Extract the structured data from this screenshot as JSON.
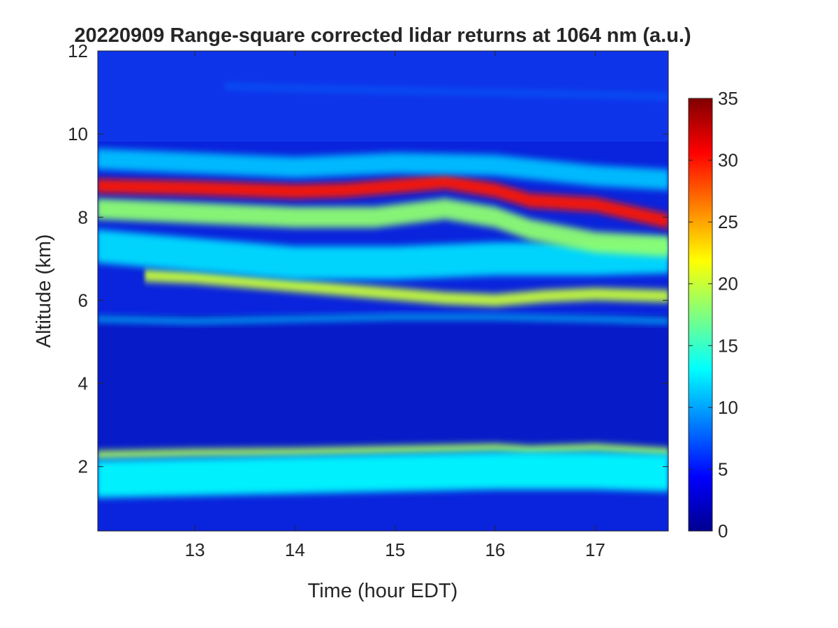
{
  "chart_data": {
    "type": "heatmap",
    "title": "20220909  Range-square corrected lidar returns at 1064 nm (a.u.)",
    "xlabel": "Time (hour EDT)",
    "ylabel": "Altitude (km)",
    "xlim": [
      12.03,
      17.73
    ],
    "ylim": [
      0.45,
      12
    ],
    "xticks": [
      13,
      14,
      15,
      16,
      17
    ],
    "yticks": [
      2,
      4,
      6,
      8,
      10,
      12
    ],
    "colorbar": {
      "range": [
        0,
        35
      ],
      "ticks": [
        0,
        5,
        10,
        15,
        20,
        25,
        30,
        35
      ],
      "colormap": "jet"
    },
    "colormap_stops": [
      "#00008f",
      "#0000ff",
      "#00ffff",
      "#ffff00",
      "#ff0000",
      "#800000"
    ],
    "layers": [
      {
        "name": "boundary-layer-top",
        "value": 19,
        "t": [
          12.03,
          13.0,
          14.0,
          15.0,
          16.0,
          16.35,
          17.0,
          17.73
        ],
        "altitude": [
          2.28,
          2.33,
          2.35,
          2.4,
          2.45,
          2.4,
          2.45,
          2.35
        ],
        "thickness_km": 0.2
      },
      {
        "name": "boundary-layer-body",
        "value": 13,
        "t": [
          12.03,
          13.0,
          14.0,
          15.0,
          16.0,
          17.0,
          17.73
        ],
        "altitude": [
          1.7,
          1.75,
          1.8,
          1.85,
          1.9,
          1.9,
          1.85
        ],
        "thickness_km": 0.9
      },
      {
        "name": "cloud-5.5km",
        "value": 11,
        "t": [
          12.03,
          13.0,
          14.0,
          15.0,
          16.0,
          17.0,
          17.73
        ],
        "altitude": [
          5.55,
          5.5,
          5.55,
          5.6,
          5.6,
          5.55,
          5.5
        ],
        "thickness_km": 0.12
      },
      {
        "name": "cloud-6.4km",
        "value": 20,
        "t": [
          12.5,
          13.0,
          13.5,
          14.0,
          14.5,
          15.0,
          15.5,
          16.0,
          16.5,
          17.0,
          17.73
        ],
        "altitude": [
          6.6,
          6.55,
          6.45,
          6.35,
          6.25,
          6.15,
          6.05,
          6.0,
          6.1,
          6.15,
          6.1
        ],
        "thickness_km": 0.3
      },
      {
        "name": "cloud-7.3km",
        "value": 12,
        "t": [
          12.03,
          13.0,
          14.0,
          15.0,
          16.0,
          17.0,
          17.73
        ],
        "altitude": [
          7.3,
          7.1,
          6.9,
          6.9,
          7.0,
          7.0,
          7.05
        ],
        "thickness_km": 0.8
      },
      {
        "name": "cirrus-lower",
        "value": 18,
        "t": [
          12.03,
          13.0,
          14.0,
          14.8,
          15.5,
          16.0,
          16.35,
          17.0,
          17.73
        ],
        "altitude": [
          8.2,
          8.1,
          8.0,
          8.0,
          8.2,
          8.0,
          7.7,
          7.4,
          7.3
        ],
        "thickness_km": 0.5
      },
      {
        "name": "cirrus-core",
        "value": 30,
        "t": [
          12.03,
          13.0,
          14.0,
          14.5,
          15.0,
          15.5,
          16.0,
          16.35,
          17.0,
          17.73
        ],
        "altitude": [
          8.75,
          8.7,
          8.62,
          8.65,
          8.75,
          8.85,
          8.65,
          8.4,
          8.3,
          7.9
        ],
        "thickness_km": 0.35
      },
      {
        "name": "cirrus-halo",
        "value": 11,
        "t": [
          12.03,
          13.0,
          14.0,
          15.0,
          16.0,
          17.0,
          17.73
        ],
        "altitude": [
          9.4,
          9.3,
          9.2,
          9.3,
          9.25,
          9.0,
          8.9
        ],
        "thickness_km": 0.5
      },
      {
        "name": "thin-cirrus-11km",
        "value": 8,
        "t": [
          13.3,
          14.0,
          15.0,
          16.0,
          17.0,
          17.73
        ],
        "altitude": [
          11.15,
          11.1,
          11.05,
          11.0,
          10.95,
          10.9
        ],
        "thickness_km": 0.08
      }
    ]
  }
}
